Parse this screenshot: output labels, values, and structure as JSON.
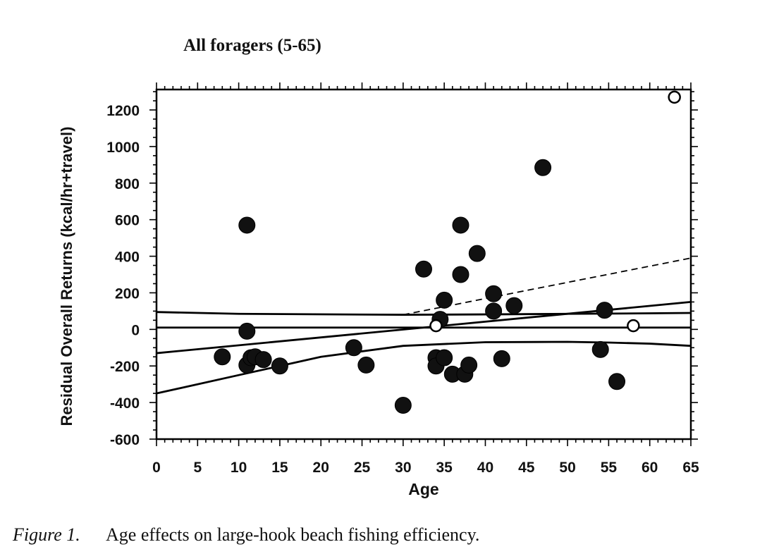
{
  "chart_data": {
    "type": "scatter",
    "title": "All foragers (5-65)",
    "xlabel": "Age",
    "ylabel": "Residual Overall Returns (kcal/hr+travel)",
    "xlim": [
      0,
      65
    ],
    "ylim": [
      -600,
      1300
    ],
    "xticks": [
      0,
      5,
      10,
      15,
      20,
      25,
      30,
      35,
      40,
      45,
      50,
      55,
      60,
      65
    ],
    "yticks": [
      -600,
      -400,
      -200,
      0,
      200,
      400,
      600,
      800,
      1000,
      1200
    ],
    "grid": false,
    "series": [
      {
        "marker": "filled-circle",
        "x": [
          8,
          11,
          11,
          11,
          11.5,
          12,
          13,
          15,
          24,
          25.5,
          30,
          32.5,
          34,
          34,
          34.5,
          35,
          35,
          36,
          37,
          37,
          37.5,
          38,
          39,
          41,
          41,
          42,
          43.5,
          47,
          54,
          54.5,
          56
        ],
        "y": [
          -150,
          570,
          -10,
          -195,
          -155,
          -150,
          -165,
          -200,
          -100,
          -195,
          -415,
          330,
          -155,
          -200,
          55,
          -155,
          160,
          -245,
          570,
          300,
          -245,
          -195,
          415,
          195,
          100,
          -160,
          130,
          885,
          -110,
          105,
          -285
        ]
      },
      {
        "marker": "open-circle",
        "x": [
          34,
          58,
          63
        ],
        "y": [
          20,
          20,
          1270
        ]
      }
    ],
    "lines": [
      {
        "style": "solid",
        "x": [
          0,
          65
        ],
        "y": [
          -130,
          150
        ]
      },
      {
        "style": "solid",
        "x": [
          0,
          65
        ],
        "y": [
          10,
          10
        ]
      },
      {
        "style": "solid",
        "x": [
          0,
          10,
          30,
          40,
          50,
          60,
          65
        ],
        "y": [
          95,
          85,
          80,
          82,
          85,
          88,
          90
        ]
      },
      {
        "style": "solid",
        "x": [
          0,
          10,
          20,
          30,
          40,
          50,
          55,
          60,
          65
        ],
        "y": [
          -350,
          -250,
          -150,
          -90,
          -70,
          -68,
          -72,
          -78,
          -90
        ]
      },
      {
        "style": "dashed",
        "x": [
          30,
          65
        ],
        "y": [
          80,
          390
        ]
      }
    ],
    "caption": {
      "label": "Figure 1.",
      "text": "Age effects on large-hook beach fishing efficiency."
    }
  }
}
